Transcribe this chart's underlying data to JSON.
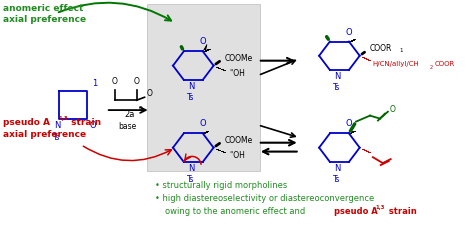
{
  "bg_color": "#ffffff",
  "colors": {
    "green": "#228B22",
    "red": "#cc0000",
    "blue": "#0000cc",
    "black": "#000000",
    "dark_green": "#006400",
    "gray_bg": "#e0e0e0",
    "arrow_green": "#007700"
  },
  "green_text_top_line1": "anomeric effect",
  "green_text_top_line2": "axial preference",
  "red_text_bot_line1": "pseudo A",
  "red_text_bot_line2": "axial preference",
  "bullet1": "• structurally rigid morpholines",
  "bullet2": "• high diastereoselectivity or diastereoconvergence",
  "bullet3_green": "  owing to the anomeric effect and ",
  "bullet3_red": "pseudo A",
  "bullet3_red2": " strain",
  "label_base": "base",
  "label_COOR1": "COOR",
  "label_COOMe": "COOMe",
  "label_OH": "OH",
  "label_Ts": "Ts",
  "label_N": "N",
  "label_O": "O",
  "label_reagent": "H/CN/allyl/CH",
  "label_reagent2": "COOR"
}
